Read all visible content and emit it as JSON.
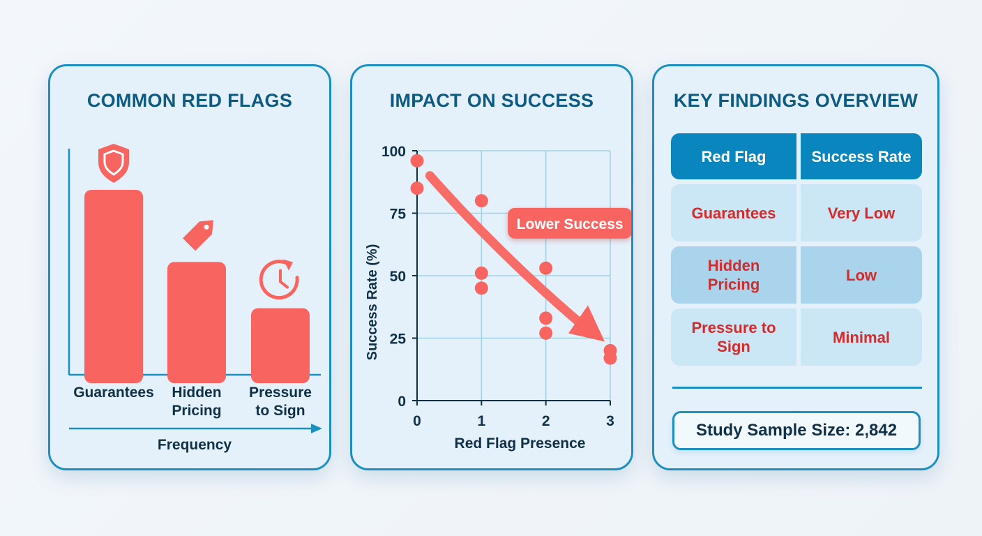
{
  "colors": {
    "accent": "#1a8fc0",
    "bar": "#f8645f",
    "title": "#0e5a80",
    "text_dark": "#0f3047",
    "red_text": "#d42a2a",
    "grid": "#9fd3e6",
    "header_bg": "#0a86bf"
  },
  "panels": {
    "red_flags": {
      "title": "COMMON RED FLAGS",
      "axis_label": "Frequency",
      "icons": [
        "shield-icon",
        "price-tag-icon",
        "clock-refresh-icon"
      ]
    },
    "impact": {
      "title": "IMPACT ON SUCCESS",
      "annotation": "Lower Success"
    },
    "findings": {
      "title": "KEY FINDINGS OVERVIEW",
      "headers": [
        "Red Flag",
        "Success Rate"
      ],
      "rows": [
        {
          "flag": "Guarantees",
          "rate": "Very Low"
        },
        {
          "flag": "Hidden Pricing",
          "rate": "Low"
        },
        {
          "flag": "Pressure to Sign",
          "rate": "Minimal"
        }
      ],
      "sample_size": "Study Sample Size: 2,842"
    }
  },
  "chart_data": [
    {
      "type": "bar",
      "title": "COMMON RED FLAGS",
      "categories": [
        "Guarantees",
        "Hidden Pricing",
        "Pressure to Sign"
      ],
      "values": [
        100,
        61,
        36
      ],
      "xlabel": "Frequency",
      "ylabel": "",
      "grid": false,
      "legend": "none"
    },
    {
      "type": "scatter",
      "title": "IMPACT ON SUCCESS",
      "xlabel": "Red Flag Presence",
      "ylabel": "Success Rate (%)",
      "xlim": [
        0,
        3
      ],
      "ylim": [
        0,
        100
      ],
      "xticks": [
        0,
        1,
        2,
        3
      ],
      "yticks": [
        0,
        25,
        50,
        75,
        100
      ],
      "grid": true,
      "legend": "none",
      "series": [
        {
          "points": [
            [
              0,
              96
            ],
            [
              0,
              85
            ],
            [
              1,
              80
            ],
            [
              1,
              51
            ],
            [
              1,
              45
            ],
            [
              2,
              53
            ],
            [
              2,
              33
            ],
            [
              2,
              27
            ],
            [
              3,
              20
            ],
            [
              3,
              17
            ]
          ]
        }
      ],
      "trend": {
        "from": [
          0.2,
          90
        ],
        "to": [
          3,
          32
        ]
      },
      "annotation": {
        "text": "Lower Success",
        "x": 2.2,
        "y": 71
      }
    }
  ]
}
